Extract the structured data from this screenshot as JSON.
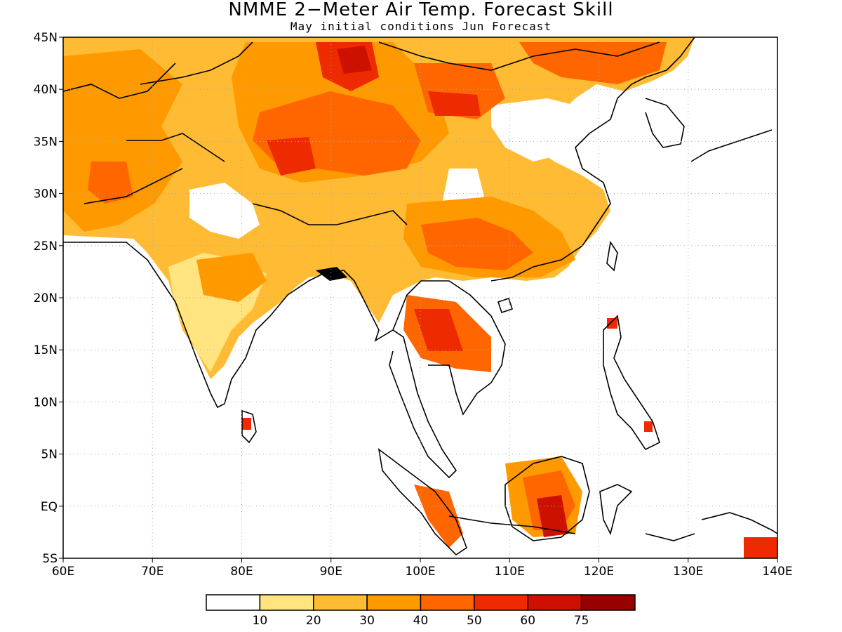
{
  "title": "NMME 2−Meter Air Temp. Forecast Skill",
  "subtitle": "May initial conditions  Jun Forecast",
  "map": {
    "lon_range": [
      60,
      140
    ],
    "lat_range": [
      -5,
      45
    ],
    "x_ticks": [
      "60E",
      "70E",
      "80E",
      "90E",
      "100E",
      "110E",
      "120E",
      "130E",
      "140E"
    ],
    "y_ticks": [
      "5S",
      "EQ",
      "5N",
      "10N",
      "15N",
      "20N",
      "25N",
      "30N",
      "35N",
      "40N",
      "45N"
    ],
    "gridlines": "dotted"
  },
  "legend": {
    "labels": [
      "10",
      "20",
      "30",
      "40",
      "50",
      "60",
      "75"
    ],
    "colors": [
      "#ffffff",
      "#ffe480",
      "#ffbb33",
      "#ff9900",
      "#ff6600",
      "#ee2a00",
      "#cc1100",
      "#990000"
    ]
  }
}
